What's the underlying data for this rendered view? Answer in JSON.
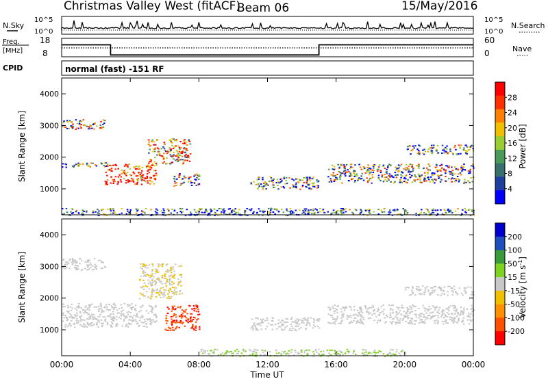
{
  "header": {
    "site": "Christmas Valley West (fitACF)",
    "beam": "Beam 06",
    "date": "15/May/2016"
  },
  "status_panels": {
    "nsky_label": "N.Sky",
    "nsearch_label": "N.Search",
    "freq_label_1": "Freq.",
    "freq_label_2": "[MHz]",
    "nave_label": "Nave",
    "cpid_label": "CPID",
    "cpid_text": "normal (fast) -151 RF",
    "noise_ticks_left": [
      "10^5",
      "10^0"
    ],
    "noise_ticks_right": [
      "10^5",
      "10^0"
    ],
    "freq_ticks": [
      "18",
      "8"
    ],
    "nave_ticks": [
      "60",
      "0"
    ]
  },
  "axes": {
    "xlabel": "Time UT",
    "ylabel": "Slant Range [km]",
    "xticks": [
      "00:00",
      "04:00",
      "08:00",
      "12:00",
      "16:00",
      "20:00",
      "00:00"
    ],
    "xtick_hours": [
      0,
      4,
      8,
      12,
      16,
      20,
      24
    ],
    "yticks": [
      "1000",
      "2000",
      "3000",
      "4000"
    ],
    "ytick_values": [
      1000,
      2000,
      3000,
      4000
    ],
    "xlim_hours": [
      0,
      24
    ],
    "ylim_km": [
      180,
      4500
    ]
  },
  "colorbars": {
    "power": {
      "label": "Power [dB]",
      "ticks": [
        "28",
        "24",
        "20",
        "16",
        "12",
        "8",
        "4"
      ],
      "colors": [
        "#0000ff",
        "#1f3f9f",
        "#3a6f6f",
        "#4a9a5a",
        "#9acd32",
        "#f0c000",
        "#ff8000",
        "#ff3000",
        "#ff0000"
      ]
    },
    "velocity": {
      "label": "Velocity [m s",
      "label_sup": "-1",
      "label_end": "]",
      "ticks": [
        "200",
        "100",
        "50",
        "15",
        "-15",
        "-50",
        "-100",
        "-200"
      ],
      "colors": [
        "#ff0000",
        "#ff5000",
        "#ff9000",
        "#f0c000",
        "#c8c8c8",
        "#7ed321",
        "#3a9a3a",
        "#1f4fbf",
        "#0000cc"
      ]
    }
  },
  "chart_data": [
    {
      "type": "heatmap",
      "title": "Christmas Valley West (fitACF) Beam 06 15/May/2016",
      "quantity": "Power [dB]",
      "xlabel": "Time UT",
      "ylabel": "Slant Range [km]",
      "xlim_hours": [
        0,
        24
      ],
      "ylim_km": [
        180,
        4500
      ],
      "color_scale": [
        0,
        30
      ],
      "regions": [
        {
          "t_start": 0.0,
          "t_end": 2.8,
          "r_min": 1700,
          "r_max": 1850,
          "power_db": 8
        },
        {
          "t_start": 0.0,
          "t_end": 2.5,
          "r_min": 2900,
          "r_max": 3200,
          "power_db": 14
        },
        {
          "t_start": 2.5,
          "t_end": 5.5,
          "r_min": 1150,
          "r_max": 1800,
          "power_db": 28
        },
        {
          "t_start": 5.0,
          "t_end": 7.5,
          "r_min": 1800,
          "r_max": 2600,
          "power_db": 20
        },
        {
          "t_start": 6.5,
          "t_end": 8.0,
          "r_min": 1100,
          "r_max": 1500,
          "power_db": 12
        },
        {
          "t_start": 11.0,
          "t_end": 15.0,
          "r_min": 1000,
          "r_max": 1400,
          "power_db": 10
        },
        {
          "t_start": 15.5,
          "t_end": 24.0,
          "r_min": 1200,
          "r_max": 1800,
          "power_db": 12
        },
        {
          "t_start": 20.0,
          "t_end": 24.0,
          "r_min": 2100,
          "r_max": 2400,
          "power_db": 10
        },
        {
          "t_start": 0.0,
          "t_end": 24.0,
          "r_min": 180,
          "r_max": 400,
          "power_db": 6
        }
      ]
    },
    {
      "type": "heatmap",
      "quantity": "Velocity [m s-1]",
      "xlabel": "Time UT",
      "ylabel": "Slant Range [km]",
      "xlim_hours": [
        0,
        24
      ],
      "ylim_km": [
        180,
        4500
      ],
      "color_scale": [
        -200,
        200
      ],
      "regions": [
        {
          "t_start": 0.0,
          "t_end": 5.5,
          "r_min": 1100,
          "r_max": 1850,
          "velocity": 0
        },
        {
          "t_start": 0.0,
          "t_end": 2.5,
          "r_min": 2900,
          "r_max": 3300,
          "velocity": 0
        },
        {
          "t_start": 4.5,
          "t_end": 7.0,
          "r_min": 2000,
          "r_max": 3100,
          "velocity": -20
        },
        {
          "t_start": 6.0,
          "t_end": 8.0,
          "r_min": 1000,
          "r_max": 1800,
          "velocity": -150
        },
        {
          "t_start": 11.0,
          "t_end": 15.0,
          "r_min": 1000,
          "r_max": 1400,
          "velocity": 0
        },
        {
          "t_start": 15.5,
          "t_end": 24.0,
          "r_min": 1200,
          "r_max": 1800,
          "velocity": 0
        },
        {
          "t_start": 20.0,
          "t_end": 24.0,
          "r_min": 2100,
          "r_max": 2400,
          "velocity": 0
        },
        {
          "t_start": 8.0,
          "t_end": 20.0,
          "r_min": 180,
          "r_max": 400,
          "velocity": 20
        }
      ]
    },
    {
      "type": "line",
      "quantity": "Transmit frequency [MHz]",
      "xlim_hours": [
        0,
        24
      ],
      "ylim": [
        8,
        18
      ],
      "segments": [
        {
          "t_start": 0.0,
          "t_end": 2.85,
          "value": 14.5
        },
        {
          "t_start": 2.85,
          "t_end": 15.0,
          "value": 9.0
        },
        {
          "t_start": 15.0,
          "t_end": 24.0,
          "value": 14.5
        }
      ]
    }
  ]
}
